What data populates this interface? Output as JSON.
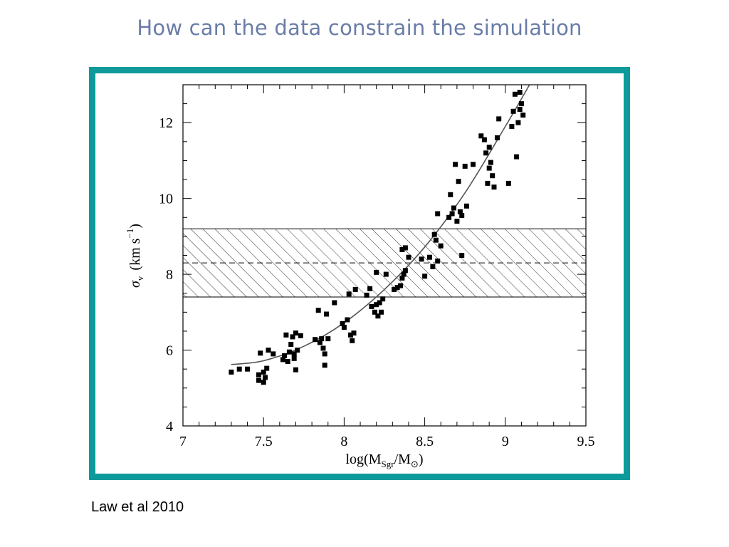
{
  "slide": {
    "title": "How can the data constrain the simulation",
    "citation": "Law et al 2010"
  },
  "colors": {
    "title": "#6a7da8",
    "frame": "#0e9a9a",
    "marks": "#000000"
  },
  "chart_data": {
    "type": "scatter",
    "title": "",
    "xlabel": "log(M_Sgr/M_⊙)",
    "xlabel_parts": {
      "main": "log(M",
      "sub1": "Sgr",
      "mid": "/M",
      "sub2": "⊙",
      "end": ")"
    },
    "ylabel": "σ_v (km s^-1)",
    "ylabel_parts": {
      "sigma": "σ",
      "sub": "v",
      "units": "(km s",
      "sup": "−1",
      "close": ")"
    },
    "xlim": [
      7,
      9.5
    ],
    "ylim": [
      4,
      13
    ],
    "xticks": [
      "7",
      "7.5",
      "8",
      "8.5",
      "9",
      "9.5"
    ],
    "yticks": [
      "4",
      "6",
      "8",
      "10",
      "12"
    ],
    "band": {
      "ymin": 7.4,
      "ymax": 9.2,
      "yline": 8.3,
      "style": "hatched"
    },
    "fit_curve": {
      "x": [
        7.3,
        7.5,
        7.75,
        8.0,
        8.25,
        8.5,
        8.75,
        9.0,
        9.15
      ],
      "y": [
        5.62,
        5.72,
        6.1,
        6.72,
        7.6,
        8.72,
        10.15,
        11.9,
        13.0
      ]
    },
    "points": [
      [
        7.3,
        5.42
      ],
      [
        7.35,
        5.5
      ],
      [
        7.4,
        5.5
      ],
      [
        7.47,
        5.2
      ],
      [
        7.47,
        5.35
      ],
      [
        7.48,
        5.92
      ],
      [
        7.5,
        5.15
      ],
      [
        7.5,
        5.42
      ],
      [
        7.51,
        5.28
      ],
      [
        7.52,
        5.52
      ],
      [
        7.53,
        6.0
      ],
      [
        7.56,
        5.9
      ],
      [
        7.62,
        5.75
      ],
      [
        7.63,
        5.85
      ],
      [
        7.64,
        6.4
      ],
      [
        7.65,
        5.7
      ],
      [
        7.66,
        5.95
      ],
      [
        7.67,
        6.15
      ],
      [
        7.68,
        6.35
      ],
      [
        7.69,
        5.9
      ],
      [
        7.69,
        5.78
      ],
      [
        7.7,
        5.48
      ],
      [
        7.71,
        6.0
      ],
      [
        7.7,
        6.45
      ],
      [
        7.73,
        6.38
      ],
      [
        7.82,
        6.28
      ],
      [
        7.84,
        7.05
      ],
      [
        7.85,
        6.2
      ],
      [
        7.86,
        6.3
      ],
      [
        7.87,
        6.05
      ],
      [
        7.88,
        5.9
      ],
      [
        7.88,
        5.6
      ],
      [
        7.9,
        6.3
      ],
      [
        7.89,
        6.95
      ],
      [
        7.94,
        7.25
      ],
      [
        7.99,
        6.7
      ],
      [
        8.0,
        6.6
      ],
      [
        8.02,
        6.8
      ],
      [
        8.03,
        7.48
      ],
      [
        8.04,
        6.4
      ],
      [
        8.05,
        6.25
      ],
      [
        8.06,
        6.45
      ],
      [
        8.07,
        7.6
      ],
      [
        8.14,
        7.45
      ],
      [
        8.16,
        7.62
      ],
      [
        8.17,
        7.15
      ],
      [
        8.19,
        7.0
      ],
      [
        8.2,
        7.2
      ],
      [
        8.2,
        8.05
      ],
      [
        8.21,
        6.9
      ],
      [
        8.22,
        7.25
      ],
      [
        8.23,
        7.0
      ],
      [
        8.24,
        7.35
      ],
      [
        8.26,
        8.0
      ],
      [
        8.31,
        7.6
      ],
      [
        8.33,
        7.65
      ],
      [
        8.35,
        7.7
      ],
      [
        8.36,
        7.9
      ],
      [
        8.37,
        8.0
      ],
      [
        8.38,
        8.1
      ],
      [
        8.36,
        8.65
      ],
      [
        8.38,
        8.7
      ],
      [
        8.4,
        8.45
      ],
      [
        8.48,
        8.4
      ],
      [
        8.5,
        7.95
      ],
      [
        8.53,
        8.45
      ],
      [
        8.55,
        8.2
      ],
      [
        8.56,
        9.05
      ],
      [
        8.57,
        8.9
      ],
      [
        8.58,
        8.35
      ],
      [
        8.6,
        8.75
      ],
      [
        8.58,
        9.6
      ],
      [
        8.65,
        9.5
      ],
      [
        8.66,
        10.1
      ],
      [
        8.67,
        9.6
      ],
      [
        8.68,
        9.75
      ],
      [
        8.7,
        9.4
      ],
      [
        8.71,
        10.45
      ],
      [
        8.72,
        9.65
      ],
      [
        8.73,
        9.55
      ],
      [
        8.73,
        8.5
      ],
      [
        8.76,
        9.8
      ],
      [
        8.69,
        10.9
      ],
      [
        8.75,
        10.85
      ],
      [
        8.8,
        10.9
      ],
      [
        8.85,
        11.65
      ],
      [
        8.87,
        11.55
      ],
      [
        8.88,
        11.2
      ],
      [
        8.89,
        10.4
      ],
      [
        8.9,
        10.8
      ],
      [
        8.91,
        10.95
      ],
      [
        8.92,
        10.6
      ],
      [
        8.93,
        10.3
      ],
      [
        8.95,
        11.6
      ],
      [
        8.9,
        11.35
      ],
      [
        9.02,
        10.4
      ],
      [
        9.04,
        11.9
      ],
      [
        9.05,
        12.3
      ],
      [
        9.06,
        12.75
      ],
      [
        9.07,
        11.1
      ],
      [
        9.08,
        12.0
      ],
      [
        9.09,
        12.8
      ],
      [
        9.1,
        12.5
      ],
      [
        9.11,
        12.2
      ],
      [
        9.09,
        12.35
      ],
      [
        8.96,
        12.1
      ]
    ]
  }
}
